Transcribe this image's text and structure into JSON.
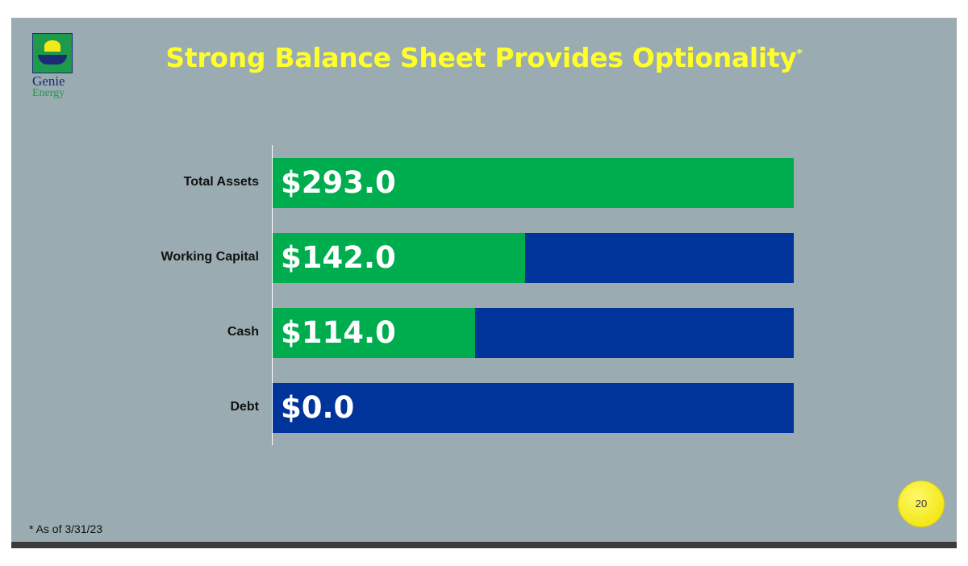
{
  "title": "Strong Balance Sheet Provides Optionality",
  "title_mark": "*",
  "logo": {
    "line1": "Genie",
    "line2": "Energy"
  },
  "footnote": "* As of 3/31/23",
  "page_number": "20",
  "colors": {
    "fill": "#00ad4e",
    "remainder": "#00349a",
    "title": "#ffff2b",
    "background": "#9aabb1"
  },
  "chart_data": {
    "type": "bar",
    "orientation": "horizontal",
    "title": "Strong Balance Sheet Provides Optionality*",
    "categories": [
      "Total Assets",
      "Working Capital",
      "Cash",
      "Debt"
    ],
    "values": [
      293.0,
      142.0,
      114.0,
      0.0
    ],
    "data_labels": [
      "$293.0",
      "$142.0",
      "$114.0",
      "$0.0"
    ],
    "xlim": [
      0,
      293.0
    ],
    "grid": false,
    "legend": "none"
  }
}
